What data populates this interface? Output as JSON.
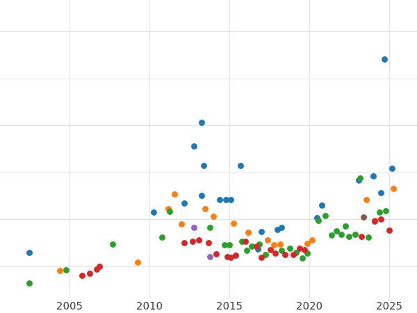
{
  "chart_data": {
    "type": "scatter",
    "title": "",
    "xlabel": "",
    "ylabel": "",
    "grid": true,
    "legend": "none",
    "x_ticks": [
      2005,
      2010,
      2015,
      2020,
      2025
    ],
    "x_tick_labels": [
      "2005",
      "2010",
      "2015",
      "2020",
      "2025"
    ],
    "x_range_years": [
      2000.6,
      2026.7
    ],
    "y_axis_labels_visible": false,
    "note_y_units": "y values recorded as pixel rows (no y tick labels visible in source)",
    "series": [
      {
        "name": "series-blue",
        "color": "#1f77b4",
        "points_year_ypx": [
          [
            2002.5,
            363
          ],
          [
            2010.3,
            305
          ],
          [
            2012.2,
            292
          ],
          [
            2012.8,
            210
          ],
          [
            2013.3,
            176
          ],
          [
            2013.4,
            238
          ],
          [
            2013.3,
            281
          ],
          [
            2014.4,
            287
          ],
          [
            2014.8,
            287
          ],
          [
            2015.1,
            287
          ],
          [
            2015.7,
            238
          ],
          [
            2016.8,
            358
          ],
          [
            2017.0,
            333
          ],
          [
            2018.0,
            330
          ],
          [
            2018.3,
            327
          ],
          [
            2020.5,
            313
          ],
          [
            2020.8,
            295
          ],
          [
            2023.1,
            259
          ],
          [
            2024.0,
            253
          ],
          [
            2024.5,
            277
          ],
          [
            2024.7,
            85
          ],
          [
            2025.2,
            242
          ]
        ]
      },
      {
        "name": "series-orange",
        "color": "#ff7f0e",
        "points_year_ypx": [
          [
            2004.4,
            389
          ],
          [
            2009.3,
            377
          ],
          [
            2011.2,
            300
          ],
          [
            2011.6,
            279
          ],
          [
            2012.0,
            322
          ],
          [
            2013.5,
            300
          ],
          [
            2014.0,
            311
          ],
          [
            2015.3,
            321
          ],
          [
            2016.2,
            334
          ],
          [
            2017.4,
            345
          ],
          [
            2017.8,
            352
          ],
          [
            2018.2,
            351
          ],
          [
            2019.9,
            350
          ],
          [
            2020.2,
            345
          ],
          [
            2023.6,
            287
          ],
          [
            2024.1,
            317
          ],
          [
            2025.3,
            271
          ]
        ]
      },
      {
        "name": "series-green",
        "color": "#2ca02c",
        "points_year_ypx": [
          [
            2002.5,
            407
          ],
          [
            2004.8,
            388
          ],
          [
            2007.7,
            351
          ],
          [
            2010.8,
            341
          ],
          [
            2011.3,
            304
          ],
          [
            2013.8,
            327
          ],
          [
            2014.7,
            352
          ],
          [
            2015.0,
            352
          ],
          [
            2015.8,
            347
          ],
          [
            2016.1,
            360
          ],
          [
            2016.4,
            354
          ],
          [
            2016.9,
            351
          ],
          [
            2017.3,
            366
          ],
          [
            2018.3,
            360
          ],
          [
            2018.8,
            357
          ],
          [
            2019.2,
            363
          ],
          [
            2019.6,
            371
          ],
          [
            2019.9,
            364
          ],
          [
            2020.6,
            317
          ],
          [
            2021.0,
            310
          ],
          [
            2021.4,
            338
          ],
          [
            2021.7,
            332
          ],
          [
            2022.0,
            337
          ],
          [
            2022.3,
            325
          ],
          [
            2022.5,
            340
          ],
          [
            2022.9,
            337
          ],
          [
            2023.2,
            256
          ],
          [
            2023.7,
            341
          ],
          [
            2024.4,
            305
          ],
          [
            2024.8,
            303
          ]
        ]
      },
      {
        "name": "series-red",
        "color": "#d62728",
        "points_year_ypx": [
          [
            2005.8,
            396
          ],
          [
            2006.3,
            393
          ],
          [
            2006.7,
            387
          ],
          [
            2006.9,
            383
          ],
          [
            2012.2,
            349
          ],
          [
            2012.7,
            347
          ],
          [
            2013.1,
            345
          ],
          [
            2013.7,
            349
          ],
          [
            2014.2,
            365
          ],
          [
            2014.9,
            369
          ],
          [
            2015.1,
            370
          ],
          [
            2015.4,
            367
          ],
          [
            2016.0,
            347
          ],
          [
            2016.7,
            354
          ],
          [
            2017.0,
            370
          ],
          [
            2017.6,
            359
          ],
          [
            2017.9,
            364
          ],
          [
            2018.5,
            366
          ],
          [
            2019.0,
            366
          ],
          [
            2019.4,
            357
          ],
          [
            2019.7,
            359
          ],
          [
            2023.3,
            340
          ],
          [
            2024.1,
            318
          ],
          [
            2024.5,
            315
          ],
          [
            2025.0,
            331
          ]
        ]
      },
      {
        "name": "series-purple",
        "color": "#9467bd",
        "points_year_ypx": [
          [
            2012.8,
            327
          ],
          [
            2013.8,
            369
          ]
        ]
      },
      {
        "name": "series-brown",
        "color": "#8c564b",
        "points_year_ypx": [
          [
            2023.4,
            312
          ]
        ]
      }
    ]
  }
}
